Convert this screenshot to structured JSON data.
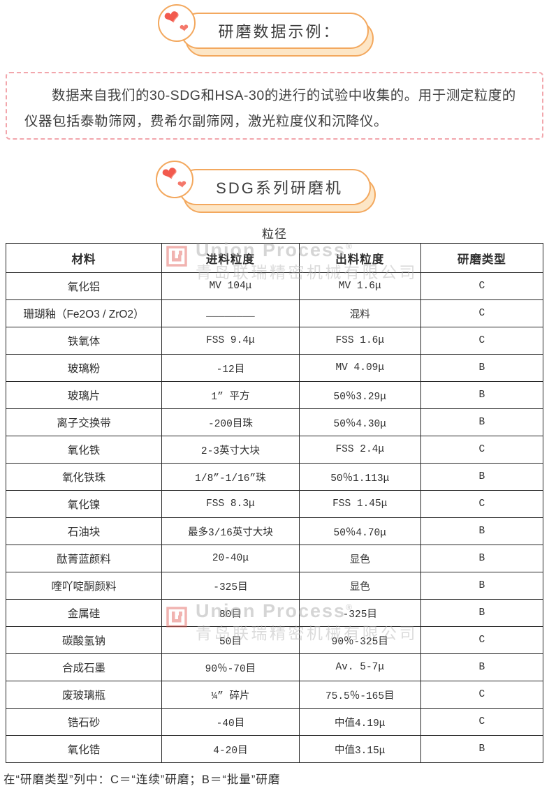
{
  "badge1": {
    "label": "研磨数据示例："
  },
  "intro": {
    "text": "数据来自我们的30-SDG和HSA-30的进行的试验中收集的。用于测定粒度的仪器包括泰勒筛网，费希尔副筛网，激光粒度仪和沉降仪。"
  },
  "badge2": {
    "label": "SDG系列研磨机"
  },
  "table": {
    "title": "粒径",
    "headers": [
      "材料",
      "进料粒度",
      "出料粒度",
      "研磨类型"
    ],
    "rows": [
      [
        "氧化铝",
        "MV 104μ",
        "MV 1.6μ",
        "C"
      ],
      [
        "珊瑚釉（Fe2O3 / ZrO2）",
        "________",
        "混料",
        "C"
      ],
      [
        "铁氧体",
        "FSS 9.4μ",
        "FSS 1.6μ",
        "C"
      ],
      [
        "玻璃粉",
        "-12目",
        "MV 4.09μ",
        "B"
      ],
      [
        "玻璃片",
        "1” 平方",
        "50％3.29μ",
        "B"
      ],
      [
        "离子交换带",
        "-200目珠",
        "50％4.30μ",
        "B"
      ],
      [
        "氧化铁",
        "2-3英寸大块",
        "FSS 2.4μ",
        "C"
      ],
      [
        "氧化铁珠",
        "1/8”-1/16”珠",
        "50％1.113μ",
        "B"
      ],
      [
        "氧化镍",
        "FSS 8.3μ",
        "FSS 1.45μ",
        "C"
      ],
      [
        "石油块",
        "最多3/16英寸大块",
        "50％4.70μ",
        "B"
      ],
      [
        "酞菁蓝颜料",
        "20-40μ",
        "显色",
        "B"
      ],
      [
        "喹吖啶酮颜料",
        "-325目",
        "显色",
        "B"
      ],
      [
        "金属硅",
        "80目",
        "-325目",
        "B"
      ],
      [
        "碳酸氢钠",
        "50目",
        "90％-325目",
        "C"
      ],
      [
        "合成石墨",
        "90％-70目",
        "Av. 5-7μ",
        "B"
      ],
      [
        "废玻璃瓶",
        "¼” 碎片",
        "75.5％-165目",
        "C"
      ],
      [
        "锆石砂",
        "-40目",
        "中值4.19μ",
        "C"
      ],
      [
        "氧化锆",
        "4-20目",
        "中值3.15μ",
        "B"
      ]
    ]
  },
  "watermark": {
    "brand": "Union Process",
    "registered": "®",
    "company": "青岛联瑞精密机械有限公司"
  },
  "footnote": {
    "text": "在“研磨类型”列中：C＝“连续”研磨；B＝“批量”研磨"
  },
  "colors": {
    "accent_orange": "#f3a85e",
    "pill_shadow_fill": "#fde6c6",
    "heart_red": "#f25a4e",
    "heart_light": "#f4776a",
    "dashed_pink": "#f2a6ac",
    "table_border": "#262626",
    "watermark_gray": "#b5b5b5",
    "watermark_red": "#e2625c",
    "body_text": "#3d3d3d"
  }
}
